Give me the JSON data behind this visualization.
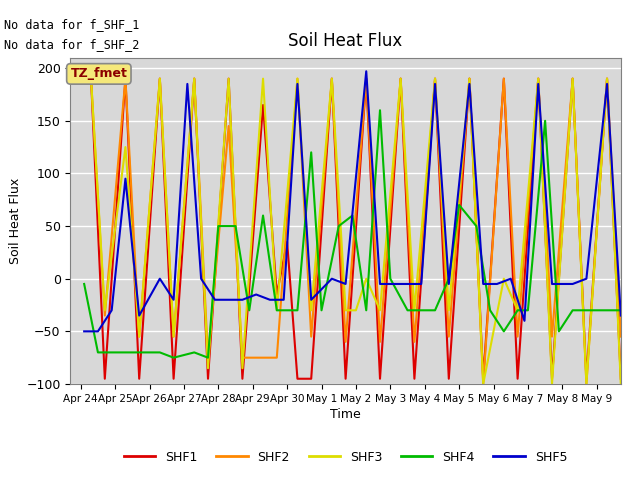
{
  "title": "Soil Heat Flux",
  "xlabel": "Time",
  "ylabel": "Soil Heat Flux",
  "ylim": [
    -100,
    210
  ],
  "no_data_labels": [
    "No data for f_SHF_1",
    "No data for f_SHF_2"
  ],
  "tz_label": "TZ_fmet",
  "colors": {
    "SHF1": "#dd0000",
    "SHF2": "#ff8800",
    "SHF3": "#dddd00",
    "SHF4": "#00bb00",
    "SHF5": "#0000cc"
  },
  "xtick_labels": [
    "Apr 24",
    "Apr 25",
    "Apr 26",
    "Apr 27",
    "Apr 28",
    "Apr 29",
    "Apr 30",
    "May 1",
    "May 2",
    "May 3",
    "May 4",
    "May 5",
    "May 6",
    "May 7",
    "May 8",
    "May 9"
  ],
  "background_color": "#d8d8d8",
  "SHF1_x": [
    0.3,
    0.7,
    1.3,
    1.7,
    2.3,
    2.7,
    3.3,
    3.7,
    4.3,
    4.7,
    5.3,
    5.7,
    6.0,
    6.3,
    6.7,
    7.3,
    7.7,
    8.3,
    8.7,
    9.3,
    9.7,
    10.3,
    10.7,
    11.3,
    11.7,
    12.3,
    12.7,
    13.3,
    13.7,
    14.3,
    14.7,
    15.3,
    15.7
  ],
  "SHF1_y": [
    190,
    -95,
    190,
    -95,
    190,
    -95,
    190,
    -95,
    190,
    -95,
    165,
    -15,
    35,
    -95,
    -95,
    190,
    -95,
    190,
    -95,
    190,
    -95,
    190,
    -95,
    190,
    -95,
    190,
    -95,
    190,
    -95,
    190,
    -95,
    190,
    -95
  ],
  "SHF2_x": [
    0.3,
    0.7,
    1.3,
    1.7,
    2.3,
    2.7,
    3.3,
    3.7,
    4.3,
    4.7,
    5.0,
    5.3,
    5.7,
    6.3,
    6.7,
    7.3,
    7.7,
    8.3,
    8.7,
    9.3,
    9.7,
    10.3,
    10.7,
    11.3,
    11.7,
    12.3,
    12.7,
    13.3,
    13.7,
    14.3,
    14.7,
    15.3,
    15.7
  ],
  "SHF2_y": [
    190,
    -35,
    190,
    -55,
    190,
    -55,
    190,
    -75,
    145,
    -75,
    -75,
    -75,
    -75,
    190,
    -55,
    190,
    -60,
    190,
    -60,
    190,
    -60,
    190,
    -55,
    190,
    -100,
    190,
    -55,
    190,
    -55,
    190,
    -100,
    190,
    -55
  ],
  "SHF3_x": [
    0.3,
    0.7,
    1.3,
    1.7,
    2.3,
    2.7,
    3.3,
    3.7,
    4.3,
    4.7,
    5.3,
    5.7,
    6.3,
    6.7,
    7.3,
    7.7,
    8.0,
    8.3,
    8.7,
    9.3,
    9.7,
    10.3,
    10.7,
    11.3,
    11.7,
    12.3,
    12.7,
    13.3,
    13.7,
    14.3,
    14.7,
    15.3,
    15.7
  ],
  "SHF3_y": [
    190,
    -30,
    125,
    -55,
    190,
    -55,
    190,
    -85,
    190,
    -85,
    190,
    -30,
    190,
    -30,
    190,
    -30,
    -30,
    0,
    -30,
    190,
    -30,
    190,
    -30,
    190,
    -100,
    0,
    -30,
    190,
    -100,
    190,
    -100,
    190,
    -100
  ],
  "SHF4_x": [
    0.1,
    0.5,
    0.9,
    1.3,
    1.7,
    2.3,
    2.7,
    3.3,
    3.7,
    4.0,
    4.5,
    4.9,
    5.3,
    5.7,
    6.3,
    6.7,
    7.0,
    7.5,
    7.9,
    8.3,
    8.7,
    9.0,
    9.5,
    9.9,
    10.3,
    10.7,
    11.0,
    11.5,
    11.9,
    12.3,
    12.7,
    13.0,
    13.5,
    13.9,
    14.3,
    14.7,
    15.3,
    15.7
  ],
  "SHF4_y": [
    -5,
    -70,
    -70,
    -70,
    -70,
    -70,
    -75,
    -70,
    -75,
    50,
    50,
    -30,
    60,
    -30,
    -30,
    120,
    -30,
    50,
    60,
    -30,
    160,
    0,
    -30,
    -30,
    -30,
    0,
    70,
    50,
    -30,
    -50,
    -30,
    -30,
    150,
    -50,
    -30,
    -30,
    -30,
    -30
  ],
  "SHF5_x": [
    0.1,
    0.5,
    0.9,
    1.3,
    1.7,
    2.3,
    2.7,
    3.1,
    3.5,
    3.9,
    4.3,
    4.7,
    5.1,
    5.5,
    5.9,
    6.3,
    6.7,
    7.3,
    7.7,
    8.3,
    8.7,
    9.1,
    9.5,
    9.9,
    10.3,
    10.7,
    11.3,
    11.7,
    12.1,
    12.5,
    12.9,
    13.3,
    13.7,
    14.3,
    14.7,
    15.3,
    15.7
  ],
  "SHF5_y": [
    -50,
    -50,
    -30,
    95,
    -35,
    0,
    -20,
    185,
    0,
    -20,
    -20,
    -20,
    -15,
    -20,
    -20,
    185,
    -20,
    0,
    -5,
    197,
    -5,
    -5,
    -5,
    -5,
    185,
    -5,
    185,
    -5,
    -5,
    0,
    -40,
    185,
    -5,
    -5,
    0,
    185,
    -35
  ]
}
